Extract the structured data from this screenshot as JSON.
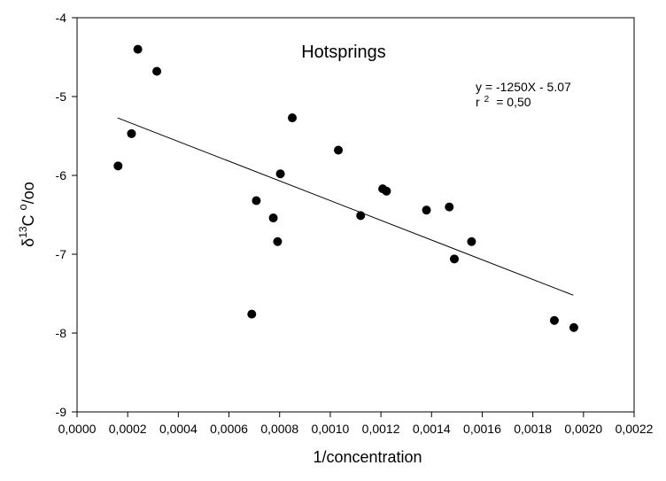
{
  "chart_data": {
    "type": "scatter",
    "title": "Hotsprings",
    "xlabel": "1/concentration",
    "ylabel": {
      "prefix": "δ",
      "superscript": "13",
      "main": "C ",
      "superscript2": "o",
      "suffix": "/oo"
    },
    "annotations": {
      "equation": "y = -1250X - 5.07",
      "r2_prefix": "r",
      "r2_superscript": "2",
      "r2_value": "= 0,50"
    },
    "xlim": [
      0,
      0.0022
    ],
    "ylim": [
      -9,
      -4
    ],
    "x_ticks": [
      0,
      0.0002,
      0.0004,
      0.0006,
      0.0008,
      0.001,
      0.0012,
      0.0014,
      0.0016,
      0.0018,
      0.002,
      0.0022
    ],
    "x_tick_labels": [
      "0,0000",
      "0,0002",
      "0,0004",
      "0,0006",
      "0,0008",
      "0,0010",
      "0,0012",
      "0,0014",
      "0,0016",
      "0,0018",
      "0,0020",
      "0,0022"
    ],
    "y_ticks": [
      -9,
      -8,
      -7,
      -6,
      -5,
      -4
    ],
    "y_tick_labels": [
      "-9",
      "-8",
      "-7",
      "-6",
      "-5",
      "-4"
    ],
    "grid": false,
    "points": [
      {
        "x": 0.000162,
        "y": -5.88
      },
      {
        "x": 0.000215,
        "y": -5.47
      },
      {
        "x": 0.00024,
        "y": -4.4
      },
      {
        "x": 0.000315,
        "y": -4.68
      },
      {
        "x": 0.00069,
        "y": -7.76
      },
      {
        "x": 0.000708,
        "y": -6.32
      },
      {
        "x": 0.000775,
        "y": -6.54
      },
      {
        "x": 0.000792,
        "y": -6.84
      },
      {
        "x": 0.000803,
        "y": -5.98
      },
      {
        "x": 0.00085,
        "y": -5.27
      },
      {
        "x": 0.001032,
        "y": -5.68
      },
      {
        "x": 0.00112,
        "y": -6.51
      },
      {
        "x": 0.001207,
        "y": -6.17
      },
      {
        "x": 0.001222,
        "y": -6.2
      },
      {
        "x": 0.00138,
        "y": -6.44
      },
      {
        "x": 0.00147,
        "y": -6.4
      },
      {
        "x": 0.00149,
        "y": -7.06
      },
      {
        "x": 0.001558,
        "y": -6.84
      },
      {
        "x": 0.001885,
        "y": -7.84
      },
      {
        "x": 0.001962,
        "y": -7.93
      }
    ],
    "regression": {
      "slope": -1250,
      "intercept": -5.07,
      "x_range": [
        0.00016,
        0.00196
      ]
    }
  }
}
